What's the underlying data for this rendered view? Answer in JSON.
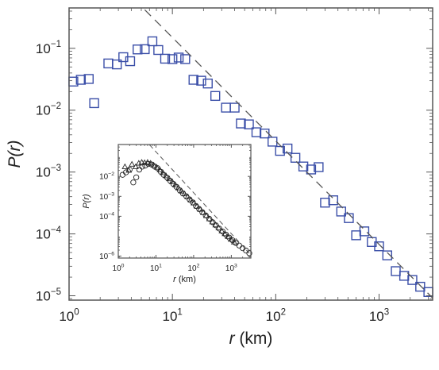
{
  "chart_data": [
    {
      "type": "scatter",
      "xlabel": {
        "var": "r",
        "unit": " (km)"
      },
      "ylabel": {
        "pre": "P(",
        "var": "r",
        "post": ")"
      },
      "xscale": "log",
      "yscale": "log",
      "xlim": [
        1,
        3300
      ],
      "ylim": [
        8.5e-06,
        0.45
      ],
      "x_ticks": [
        {
          "value": 1,
          "label": "10",
          "exp": "0"
        },
        {
          "value": 10,
          "label": "10",
          "exp": "1"
        },
        {
          "value": 100,
          "label": "10",
          "exp": "2"
        },
        {
          "value": 1000,
          "label": "10",
          "exp": "3"
        }
      ],
      "y_ticks": [
        {
          "value": 0.1,
          "label": "10",
          "exp": "−1"
        },
        {
          "value": 0.01,
          "label": "10",
          "exp": "−2"
        },
        {
          "value": 0.001,
          "label": "10",
          "exp": "−3"
        },
        {
          "value": 0.0001,
          "label": "10",
          "exp": "−4"
        },
        {
          "value": 1e-05,
          "label": "10",
          "exp": "−5"
        }
      ],
      "marker_color": "#3b4fa8",
      "series": [
        {
          "marker": "square",
          "points": [
            [
              1.1,
              0.029
            ],
            [
              1.3,
              0.031
            ],
            [
              1.55,
              0.032
            ],
            [
              1.75,
              0.013
            ],
            [
              2.4,
              0.057
            ],
            [
              2.9,
              0.055
            ],
            [
              3.35,
              0.072
            ],
            [
              3.9,
              0.062
            ],
            [
              4.6,
              0.096
            ],
            [
              5.4,
              0.097
            ],
            [
              6.4,
              0.13
            ],
            [
              7.3,
              0.094
            ],
            [
              8.5,
              0.068
            ],
            [
              10.0,
              0.067
            ],
            [
              11.5,
              0.071
            ],
            [
              13.3,
              0.067
            ],
            [
              16,
              0.031
            ],
            [
              19,
              0.03
            ],
            [
              22,
              0.027
            ],
            [
              26,
              0.017
            ],
            [
              33,
              0.011
            ],
            [
              40,
              0.011
            ],
            [
              46,
              0.0061
            ],
            [
              55,
              0.0059
            ],
            [
              65,
              0.0044
            ],
            [
              78,
              0.0042
            ],
            [
              93,
              0.0031
            ],
            [
              110,
              0.0022
            ],
            [
              130,
              0.0024
            ],
            [
              155,
              0.0017
            ],
            [
              185,
              0.00123
            ],
            [
              220,
              0.0011
            ],
            [
              260,
              0.0012
            ],
            [
              300,
              0.00032
            ],
            [
              360,
              0.00035
            ],
            [
              430,
              0.00023
            ],
            [
              510,
              0.00018
            ],
            [
              600,
              9.5e-05
            ],
            [
              720,
              0.00011
            ],
            [
              850,
              7.4e-05
            ],
            [
              1000,
              6.3e-05
            ],
            [
              1200,
              4.5e-05
            ],
            [
              1450,
              2.5e-05
            ],
            [
              1750,
              2.1e-05
            ],
            [
              2100,
              1.8e-05
            ],
            [
              2500,
              1.4e-05
            ],
            [
              3000,
              1.15e-05
            ]
          ]
        },
        {
          "type": "line",
          "style": "dashed",
          "points": [
            [
              5.4,
              0.42
            ],
            [
              3300,
              9.2e-06
            ]
          ]
        }
      ]
    },
    {
      "type": "scatter",
      "inset": true,
      "xlabel": {
        "var": "r",
        "unit": " (km)"
      },
      "ylabel": {
        "pre": "P(",
        "var": "r",
        "post": ")"
      },
      "xscale": "log",
      "yscale": "log",
      "xlim": [
        1,
        3300
      ],
      "ylim": [
        8e-07,
        0.4
      ],
      "x_ticks": [
        {
          "value": 1,
          "label": "10",
          "exp": "0"
        },
        {
          "value": 10,
          "label": "10",
          "exp": "1"
        },
        {
          "value": 100,
          "label": "10",
          "exp": "2"
        },
        {
          "value": 1000,
          "label": "10",
          "exp": "3"
        }
      ],
      "y_ticks": [
        {
          "value": 0.01,
          "label": "10",
          "exp": "−2"
        },
        {
          "value": 0.001,
          "label": "10",
          "exp": "−3"
        },
        {
          "value": 0.0001,
          "label": "10",
          "exp": "−4"
        },
        {
          "value": 1e-06,
          "label": "10",
          "exp": "−6"
        }
      ],
      "marker_color": "#222222",
      "series": [
        {
          "marker": "circle",
          "points": [
            [
              1.3,
              0.012
            ],
            [
              1.6,
              0.016
            ],
            [
              2.0,
              0.022
            ],
            [
              2.5,
              0.005
            ],
            [
              3.0,
              0.009
            ],
            [
              3.6,
              0.022
            ],
            [
              4.3,
              0.031
            ],
            [
              5.2,
              0.035
            ],
            [
              6.3,
              0.042
            ],
            [
              7.6,
              0.04
            ],
            [
              9.1,
              0.032
            ],
            [
              11,
              0.026
            ],
            [
              13.5,
              0.017
            ],
            [
              16,
              0.012
            ],
            [
              20,
              0.0085
            ],
            [
              24,
              0.006
            ],
            [
              29,
              0.0042
            ],
            [
              35,
              0.003
            ],
            [
              43,
              0.002
            ],
            [
              52,
              0.0014
            ],
            [
              64,
              0.001
            ],
            [
              78,
              0.0007
            ],
            [
              95,
              0.0005
            ],
            [
              115,
              0.00033
            ],
            [
              140,
              0.00023
            ],
            [
              170,
              0.00016
            ],
            [
              210,
              0.00011
            ],
            [
              260,
              7.5e-05
            ],
            [
              320,
              5e-05
            ],
            [
              390,
              3.5e-05
            ],
            [
              480,
              2.4e-05
            ],
            [
              590,
              1.7e-05
            ],
            [
              720,
              1.2e-05
            ],
            [
              880,
              8.5e-06
            ],
            [
              1080,
              6.2e-06
            ],
            [
              1320,
              4.5e-06
            ],
            [
              1620,
              3.4e-06
            ],
            [
              2000,
              2.5e-06
            ],
            [
              2450,
              1.9e-06
            ],
            [
              3000,
              1.4e-06
            ]
          ]
        },
        {
          "marker": "triangle",
          "points": [
            [
              1.5,
              0.03
            ],
            [
              1.9,
              0.02
            ],
            [
              2.3,
              0.04
            ],
            [
              2.9,
              0.03
            ],
            [
              3.5,
              0.045
            ],
            [
              4.2,
              0.05
            ],
            [
              5.0,
              0.048
            ],
            [
              6.0,
              0.05
            ],
            [
              7.2,
              0.045
            ],
            [
              8.7,
              0.036
            ],
            [
              10.5,
              0.028
            ],
            [
              12.7,
              0.021
            ],
            [
              15.3,
              0.015
            ],
            [
              18.5,
              0.0105
            ],
            [
              22.3,
              0.0074
            ],
            [
              27,
              0.0053
            ],
            [
              32.6,
              0.0037
            ],
            [
              39.4,
              0.0026
            ],
            [
              47.6,
              0.0018
            ],
            [
              57.5,
              0.0013
            ],
            [
              69.5,
              0.00092
            ],
            [
              84,
              0.00064
            ],
            [
              101,
              0.00045
            ],
            [
              122,
              0.00031
            ],
            [
              148,
              0.00022
            ],
            [
              179,
              0.00015
            ],
            [
              216,
              0.000105
            ],
            [
              261,
              7.3e-05
            ],
            [
              315,
              5.1e-05
            ],
            [
              381,
              3.6e-05
            ],
            [
              460,
              2.6e-05
            ],
            [
              556,
              1.8e-05
            ],
            [
              672,
              1.3e-05
            ],
            [
              812,
              9.5e-06
            ],
            [
              981,
              6.8e-06
            ],
            [
              1185,
              5e-06
            ]
          ]
        },
        {
          "type": "line",
          "style": "dashed",
          "points": [
            [
              6.8,
              0.38
            ],
            [
              3000,
              1.4e-06
            ]
          ]
        }
      ]
    }
  ]
}
